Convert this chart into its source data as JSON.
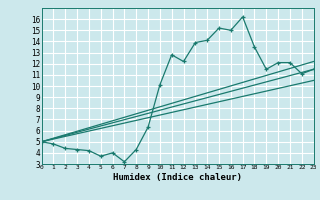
{
  "bg_color": "#cce8ec",
  "line_color": "#1a7a6e",
  "grid_color": "#ffffff",
  "xlabel": "Humidex (Indice chaleur)",
  "ylim": [
    3,
    17
  ],
  "xlim": [
    0,
    23
  ],
  "yticks": [
    3,
    4,
    5,
    6,
    7,
    8,
    9,
    10,
    11,
    12,
    13,
    14,
    15,
    16
  ],
  "xticks": [
    0,
    1,
    2,
    3,
    4,
    5,
    6,
    7,
    8,
    9,
    10,
    11,
    12,
    13,
    14,
    15,
    16,
    17,
    18,
    19,
    20,
    21,
    22,
    23
  ],
  "series1_x": [
    0,
    1,
    2,
    3,
    4,
    5,
    6,
    7,
    8,
    9,
    10,
    11,
    12,
    13,
    14,
    15,
    16,
    17,
    18,
    19,
    20,
    21,
    22,
    23
  ],
  "series1_y": [
    5.0,
    4.8,
    4.4,
    4.3,
    4.2,
    3.7,
    4.0,
    3.2,
    4.3,
    6.3,
    10.1,
    12.8,
    12.2,
    13.9,
    14.1,
    15.2,
    15.0,
    16.2,
    13.5,
    11.5,
    12.1,
    12.1,
    11.1,
    11.5
  ],
  "series2_x": [
    0,
    23
  ],
  "series2_y": [
    5.0,
    11.5
  ],
  "series3_x": [
    0,
    23
  ],
  "series3_y": [
    5.0,
    10.5
  ],
  "series4_x": [
    0,
    23
  ],
  "series4_y": [
    5.0,
    12.2
  ]
}
